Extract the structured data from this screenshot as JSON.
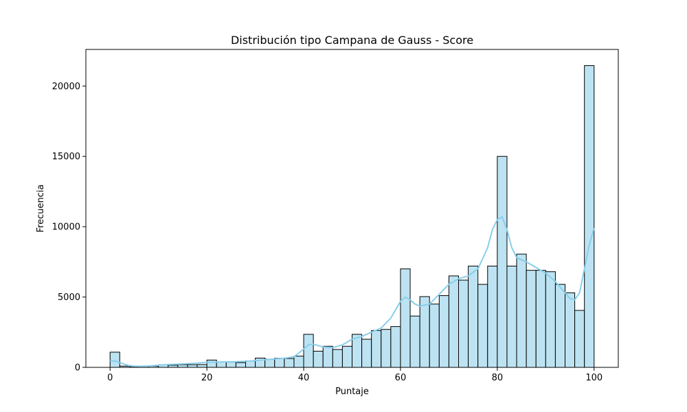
{
  "chart_data": {
    "type": "bar",
    "title": "Distribución tipo Campana de Gauss - Score",
    "xlabel": "Puntaje",
    "ylabel": "Frecuencia",
    "xlim": [
      -5,
      105
    ],
    "ylim": [
      0,
      22600
    ],
    "xticks": [
      0,
      20,
      40,
      60,
      80,
      100
    ],
    "yticks": [
      0,
      5000,
      10000,
      15000,
      20000
    ],
    "bin_width": 2,
    "bin_start": 0,
    "values": [
      1080,
      90,
      60,
      70,
      90,
      180,
      150,
      190,
      190,
      200,
      520,
      370,
      380,
      340,
      460,
      660,
      580,
      650,
      630,
      800,
      2350,
      1150,
      1500,
      1270,
      1500,
      2350,
      2000,
      2620,
      2700,
      2900,
      7000,
      3650,
      5030,
      4500,
      5100,
      6500,
      6200,
      7200,
      5900,
      7200,
      15000,
      7200,
      8050,
      6900,
      6900,
      6800,
      5900,
      5300,
      4050,
      21450
    ],
    "kde": {
      "x": [
        0,
        1,
        2,
        3,
        4,
        5,
        6,
        8,
        10,
        12,
        14,
        16,
        18,
        20,
        22,
        24,
        26,
        28,
        30,
        32,
        34,
        36,
        38,
        40,
        41,
        42,
        44,
        46,
        48,
        50,
        52,
        54,
        56,
        58,
        60,
        61,
        62,
        63,
        64,
        66,
        68,
        70,
        72,
        74,
        76,
        78,
        79,
        80,
        81,
        82,
        83,
        84,
        86,
        88,
        90,
        92,
        94,
        95,
        96,
        97,
        98,
        99,
        100
      ],
      "y": [
        470,
        450,
        350,
        220,
        120,
        90,
        80,
        100,
        150,
        200,
        230,
        260,
        300,
        360,
        380,
        390,
        400,
        430,
        480,
        540,
        600,
        650,
        750,
        1300,
        1600,
        1650,
        1450,
        1400,
        1600,
        2000,
        2200,
        2500,
        2800,
        3500,
        4700,
        5000,
        4800,
        4500,
        4350,
        4500,
        5200,
        5900,
        6300,
        6500,
        7000,
        8500,
        9800,
        10500,
        10700,
        9800,
        8500,
        7800,
        7500,
        7100,
        6700,
        6100,
        5300,
        4900,
        4800,
        5300,
        7000,
        8700,
        9900
      ]
    },
    "colors": {
      "bar_fill": "#bde3f2",
      "bar_edge": "#000000",
      "kde_line": "#87ceeb",
      "axes": "#000000"
    },
    "grid": false,
    "legend": "none"
  }
}
